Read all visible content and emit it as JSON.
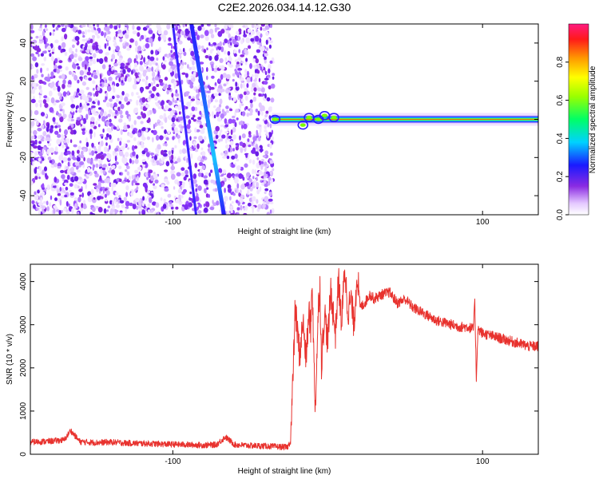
{
  "title": "C2E2.2026.034.14.12.G30",
  "chart_data": [
    {
      "type": "heatmap",
      "xlabel": "Height of straight line (km)",
      "ylabel": "Frequency (Hz)",
      "xlim": [
        -192,
        136
      ],
      "ylim": [
        -50,
        50
      ],
      "x_ticks": [
        -100,
        100
      ],
      "x_tick_labels": [
        "-100",
        "100"
      ],
      "y_ticks": [
        -40,
        -20,
        0,
        20,
        40
      ],
      "y_tick_labels": [
        "-40",
        "-20",
        "0",
        "20",
        "40"
      ],
      "noise_region": [
        -192,
        -35
      ],
      "signal_band": {
        "x_start": -36,
        "x_end": 136,
        "frequency": 0
      },
      "streaks": [
        {
          "x_at_top": -88,
          "x_at_bottom": -67
        },
        {
          "x_at_top": -100,
          "x_at_bottom": -85
        }
      ],
      "colorbar": {
        "label": "Normalized spectral amplitude",
        "range": [
          0,
          1
        ],
        "ticks": [
          0,
          0.2,
          0.4,
          0.6,
          0.8
        ],
        "tick_labels": [
          "0.0",
          "0.2",
          "0.4",
          "0.6",
          "0.8"
        ]
      }
    },
    {
      "type": "line",
      "xlabel": "Height of straight line (km)",
      "ylabel": "SNR (10 * v/v)",
      "xlim": [
        -192,
        136
      ],
      "ylim": [
        0,
        4400
      ],
      "x_ticks": [
        -100,
        100
      ],
      "x_tick_labels": [
        "-100",
        "100"
      ],
      "y_ticks": [
        0,
        1000,
        2000,
        3000,
        4000
      ],
      "y_tick_labels": [
        "0",
        "1000",
        "2000",
        "3000",
        "4000"
      ],
      "color": "#e8322e",
      "series": [
        {
          "name": "SNR",
          "x": [
            -192,
            -180,
            -170,
            -166,
            -160,
            -150,
            -140,
            -130,
            -120,
            -110,
            -100,
            -90,
            -80,
            -72,
            -66,
            -60,
            -50,
            -40,
            -30,
            -26,
            -24,
            -23,
            -22,
            -21,
            -19,
            -18,
            -16,
            -14,
            -12,
            -11,
            -10,
            -9,
            -8,
            -6,
            -5,
            -4,
            -2,
            0,
            2,
            5,
            7,
            9,
            11,
            13,
            15,
            17,
            19,
            21,
            24,
            27,
            30,
            35,
            40,
            45,
            50,
            55,
            60,
            65,
            70,
            75,
            80,
            85,
            90,
            94,
            95,
            96,
            97,
            100,
            105,
            110,
            115,
            120,
            125,
            130,
            136
          ],
          "y": [
            280,
            300,
            330,
            550,
            290,
            270,
            280,
            260,
            250,
            240,
            230,
            220,
            210,
            220,
            400,
            220,
            200,
            190,
            170,
            160,
            300,
            1200,
            2200,
            3400,
            2600,
            2300,
            3100,
            2200,
            3300,
            2900,
            4100,
            2300,
            1050,
            3400,
            3900,
            2100,
            3300,
            2600,
            3800,
            2800,
            4050,
            3000,
            4350,
            3300,
            3600,
            3000,
            4200,
            3400,
            3500,
            3700,
            3600,
            3700,
            3750,
            3500,
            3600,
            3400,
            3300,
            3200,
            3100,
            3050,
            3000,
            2950,
            2950,
            2900,
            3500,
            1750,
            2900,
            2800,
            2750,
            2700,
            2650,
            2600,
            2550,
            2500,
            2500
          ]
        }
      ]
    }
  ]
}
